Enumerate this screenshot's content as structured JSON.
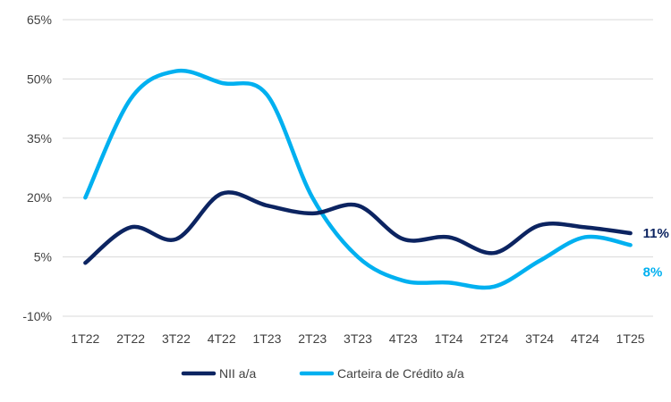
{
  "chart_data": {
    "type": "line",
    "categories": [
      "1T22",
      "2T22",
      "3T22",
      "4T22",
      "1T23",
      "2T23",
      "3T23",
      "4T23",
      "1T24",
      "2T24",
      "3T24",
      "4T24",
      "1T25"
    ],
    "ylim": [
      -10,
      65
    ],
    "yticks": [
      -10,
      5,
      20,
      35,
      50,
      65
    ],
    "ytick_labels": [
      "-10%",
      "5%",
      "20%",
      "35%",
      "50%",
      "65%"
    ],
    "grid": "horizontal",
    "legend_position": "bottom",
    "title": "",
    "xlabel": "",
    "ylabel": "",
    "series": [
      {
        "name": "NII a/a",
        "color": "#0c2461",
        "values": [
          3.5,
          12.5,
          9.5,
          21,
          18,
          16,
          18,
          9.5,
          10,
          6,
          13,
          12.5,
          11
        ],
        "end_label": "11%"
      },
      {
        "name": "Carteira de Crédito a/a",
        "color": "#00b0f0",
        "values": [
          20,
          45,
          52,
          49,
          46,
          20,
          5,
          -1,
          -1.5,
          -2.5,
          4,
          10,
          8
        ],
        "end_label": "8%"
      }
    ]
  }
}
